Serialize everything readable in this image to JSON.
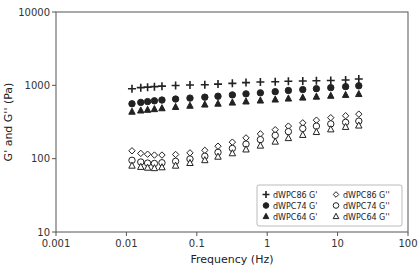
{
  "chart_data": {
    "type": "scatter",
    "xlabel": "Frequency (Hz)",
    "ylabel": "G' and G'' (Pa)",
    "log": true,
    "grid": false,
    "legend": "lower right",
    "xlim": [
      0.001,
      100
    ],
    "ylim": [
      10,
      10000
    ],
    "xticks": [
      0.001,
      0.01,
      0.1,
      1,
      10,
      100
    ],
    "yticks": [
      10,
      100,
      1000,
      10000
    ],
    "x": [
      0.012,
      0.016,
      0.02,
      0.025,
      0.032,
      0.05,
      0.08,
      0.13,
      0.2,
      0.32,
      0.5,
      0.8,
      1.3,
      2.0,
      3.2,
      5.0,
      8.0,
      13.0,
      20.0
    ],
    "series": [
      {
        "name": "dWPC86 G'",
        "color": "#222222",
        "marker": "plus",
        "values": [
          900,
          930,
          945,
          960,
          975,
          995,
          1010,
          1020,
          1040,
          1065,
          1090,
          1110,
          1120,
          1135,
          1145,
          1155,
          1165,
          1180,
          1220
        ]
      },
      {
        "name": "dWPC74 G'",
        "color": "#222222",
        "marker": "circle",
        "values": [
          560,
          585,
          600,
          615,
          630,
          650,
          670,
          690,
          710,
          740,
          765,
          790,
          820,
          850,
          875,
          900,
          930,
          960,
          985
        ]
      },
      {
        "name": "dWPC64 G'",
        "color": "#222222",
        "marker": "triangle",
        "values": [
          435,
          452,
          462,
          472,
          485,
          505,
          525,
          545,
          560,
          580,
          600,
          618,
          638,
          658,
          678,
          698,
          718,
          738,
          758
        ]
      },
      {
        "name": "dWPC86 G''",
        "color": "#222222",
        "marker": "diamond-open",
        "values": [
          128,
          118,
          115,
          112,
          112,
          114,
          120,
          130,
          148,
          168,
          192,
          218,
          248,
          278,
          308,
          335,
          362,
          385,
          405
        ]
      },
      {
        "name": "dWPC74 G''",
        "color": "#222222",
        "marker": "circle-open",
        "values": [
          95,
          90,
          87,
          86,
          88,
          92,
          99,
          108,
          122,
          138,
          158,
          182,
          208,
          234,
          258,
          278,
          298,
          313,
          325
        ]
      },
      {
        "name": "dWPC64 G''",
        "color": "#222222",
        "marker": "triangle-open",
        "values": [
          80,
          77,
          75,
          74,
          76,
          80,
          87,
          95,
          106,
          118,
          133,
          150,
          170,
          190,
          210,
          230,
          250,
          270,
          282
        ]
      }
    ]
  }
}
